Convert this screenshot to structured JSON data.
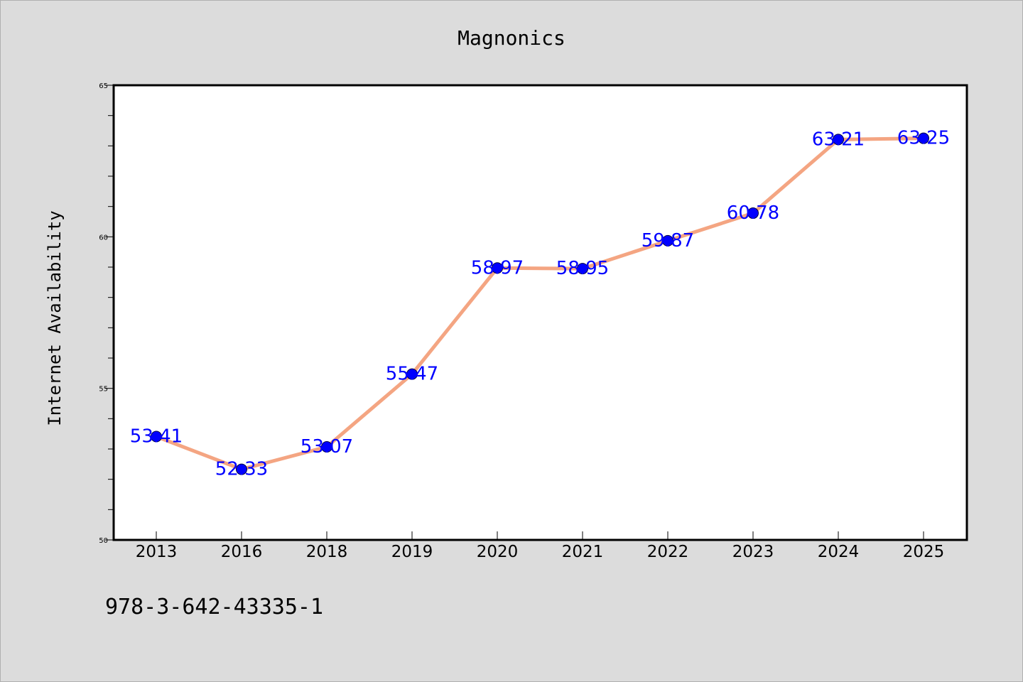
{
  "colors": {
    "background": "#dcdcdc",
    "plot_background": "#ffffff",
    "line": "#f4a582",
    "marker": "#0000ff",
    "data_label": "#0000ff"
  },
  "footer": {
    "isbn": "978-3-642-43335-1"
  },
  "chart_data": {
    "type": "line",
    "title": "Magnonics",
    "xlabel": "",
    "ylabel": "Internet Availability",
    "categories": [
      "2013",
      "2016",
      "2018",
      "2019",
      "2020",
      "2021",
      "2022",
      "2023",
      "2024",
      "2025"
    ],
    "series": [
      {
        "values": [
          53.41,
          52.33,
          53.07,
          55.47,
          58.97,
          58.95,
          59.87,
          60.78,
          63.21,
          63.25
        ]
      }
    ],
    "data_labels": [
      "53.41",
      "52.33",
      "53.07",
      "55.47",
      "58.97",
      "58.95",
      "59.87",
      "60.78",
      "63.21",
      "63.25"
    ],
    "ylim": [
      50,
      65
    ],
    "yticks": [
      50,
      55,
      60,
      65
    ],
    "grid": false,
    "legend": "none"
  }
}
